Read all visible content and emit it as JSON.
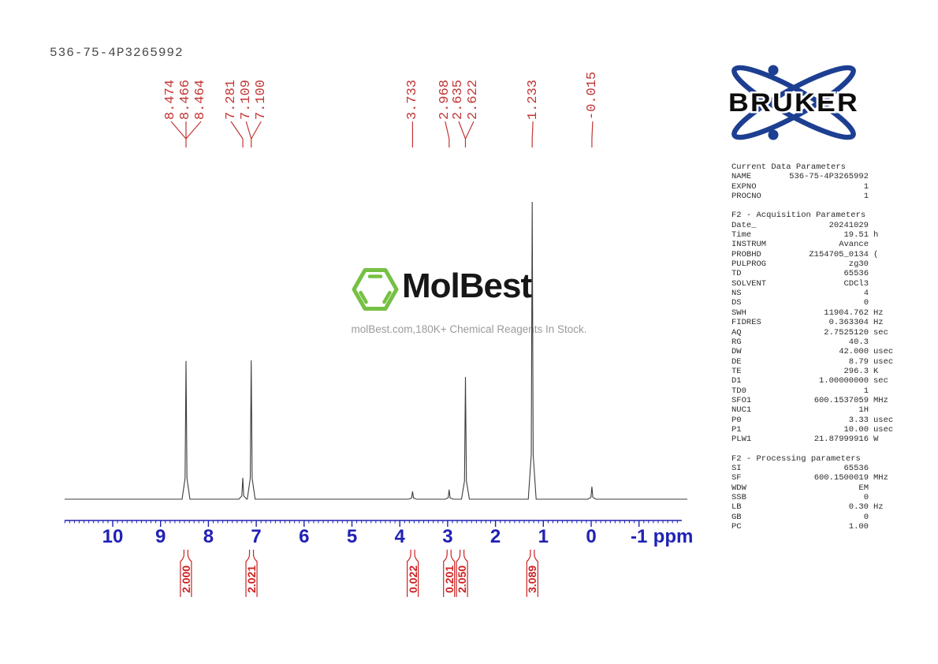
{
  "title": "536-75-4P3265992",
  "bruker": {
    "wordmark": "BRUKER",
    "logo_blue": "#1d3f92"
  },
  "watermark": {
    "brand": "MolBest",
    "tagline": "molBest.com,180K+ Chemical Reagents In Stock.",
    "hexagon_green": "#76c043"
  },
  "colors": {
    "peak_label_red": "#c23535",
    "integral_red": "#cc2222",
    "axis_blue": "#1f22b4",
    "trace_gray": "#3d3d3d"
  },
  "params_panel": {
    "sections": [
      {
        "heading": "Current Data Parameters",
        "rows": [
          [
            "NAME",
            "536-75-4P3265992",
            ""
          ],
          [
            "EXPNO",
            "1",
            ""
          ],
          [
            "PROCNO",
            "1",
            ""
          ]
        ]
      },
      {
        "heading": "F2 - Acquisition Parameters",
        "rows": [
          [
            "Date_",
            "20241029",
            ""
          ],
          [
            "Time",
            "19.51",
            "h"
          ],
          [
            "INSTRUM",
            "Avance",
            ""
          ],
          [
            "PROBHD",
            "Z154705_0134",
            "("
          ],
          [
            "PULPROG",
            "zg30",
            ""
          ],
          [
            "TD",
            "65536",
            ""
          ],
          [
            "SOLVENT",
            "CDCl3",
            ""
          ],
          [
            "NS",
            "4",
            ""
          ],
          [
            "DS",
            "0",
            ""
          ],
          [
            "SWH",
            "11904.762",
            "Hz"
          ],
          [
            "FIDRES",
            "0.363304",
            "Hz"
          ],
          [
            "AQ",
            "2.7525120",
            "sec"
          ],
          [
            "RG",
            "40.3",
            ""
          ],
          [
            "DW",
            "42.000",
            "usec"
          ],
          [
            "DE",
            "8.79",
            "usec"
          ],
          [
            "TE",
            "296.3",
            "K"
          ],
          [
            "D1",
            "1.00000000",
            "sec"
          ],
          [
            "TD0",
            "1",
            ""
          ],
          [
            "SFO1",
            "600.1537059",
            "MHz"
          ],
          [
            "NUC1",
            "1H",
            ""
          ],
          [
            "P0",
            "3.33",
            "usec"
          ],
          [
            "P1",
            "10.00",
            "usec"
          ],
          [
            "PLW1",
            "21.87999916",
            "W"
          ]
        ]
      },
      {
        "heading": "F2 - Processing parameters",
        "rows": [
          [
            "SI",
            "65536",
            ""
          ],
          [
            "SF",
            "600.1500019",
            "MHz"
          ],
          [
            "WDW",
            "EM",
            ""
          ],
          [
            "SSB",
            "0",
            ""
          ],
          [
            "LB",
            "0.30",
            "Hz"
          ],
          [
            "GB",
            "0",
            ""
          ],
          [
            "PC",
            "1.00",
            ""
          ]
        ]
      }
    ]
  },
  "chart_data": {
    "type": "line",
    "title": "1H NMR spectrum",
    "xlabel": "ppm",
    "x_axis": {
      "tick_labels": [
        "10",
        "9",
        "8",
        "7",
        "6",
        "5",
        "4",
        "3",
        "2",
        "1",
        "0",
        "-1"
      ],
      "tick_values": [
        10,
        9,
        8,
        7,
        6,
        5,
        4,
        3,
        2,
        1,
        0,
        -1
      ],
      "unit_label": "ppm",
      "minor_ticks_per_unit": 10,
      "visible_range": [
        11.0,
        -1.88
      ],
      "reversed": true,
      "grid": false
    },
    "peaks": [
      {
        "ppm": 8.468,
        "rel_intensity": 0.465
      },
      {
        "ppm": 7.281,
        "rel_intensity": 0.072
      },
      {
        "ppm": 7.105,
        "rel_intensity": 0.467
      },
      {
        "ppm": 3.733,
        "rel_intensity": 0.026
      },
      {
        "ppm": 2.968,
        "rel_intensity": 0.032
      },
      {
        "ppm": 2.628,
        "rel_intensity": 0.411
      },
      {
        "ppm": 1.233,
        "rel_intensity": 1.0
      },
      {
        "ppm": -0.015,
        "rel_intensity": 0.042
      }
    ],
    "peak_label_groups": [
      {
        "labels": [
          "8.474",
          "8.466",
          "8.464"
        ],
        "converge_ppm": 8.468,
        "label_dx": 0
      },
      {
        "labels": [
          "7.281"
        ],
        "converge_ppm": 7.281,
        "label_dx": -15
      },
      {
        "labels": [
          "7.109",
          "7.100"
        ],
        "converge_ppm": 7.105,
        "label_dx": 3
      },
      {
        "labels": [
          "3.733"
        ],
        "converge_ppm": 3.733,
        "label_dx": 0
      },
      {
        "labels": [
          "2.968"
        ],
        "converge_ppm": 2.968,
        "label_dx": -5
      },
      {
        "labels": [
          "2.635",
          "2.622"
        ],
        "converge_ppm": 2.628,
        "label_dx": 1
      },
      {
        "labels": [
          "1.233"
        ],
        "converge_ppm": 1.233,
        "label_dx": 1
      },
      {
        "labels": [
          "-0.015"
        ],
        "converge_ppm": -0.015,
        "label_dx": 1
      }
    ],
    "integrals": [
      {
        "value": "2.000",
        "ppm": 8.47
      },
      {
        "value": "2.021",
        "ppm": 7.1
      },
      {
        "value": "0.022",
        "ppm": 3.73
      },
      {
        "value": "0.201",
        "ppm": 2.97
      },
      {
        "value": "2.050",
        "ppm": 2.7
      },
      {
        "value": "3.089",
        "ppm": 1.23
      }
    ]
  }
}
